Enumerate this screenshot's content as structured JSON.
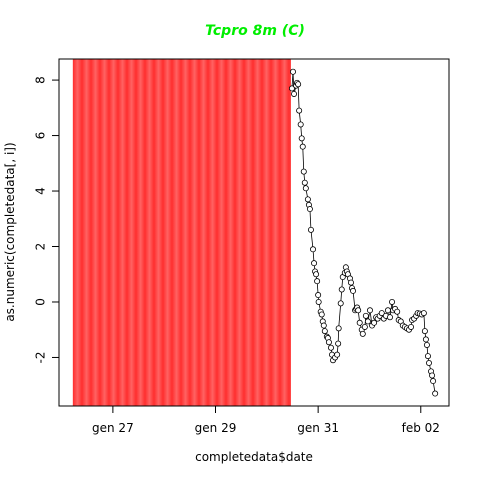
{
  "chart_data": {
    "type": "line",
    "title": "Tcpro 8m (C)",
    "title_color": "#00ee00",
    "xlabel": "completedata$date",
    "ylabel": "as.numeric(completedata[, i])",
    "xlim": [
      25.95,
      33.55
    ],
    "ylim": [
      -3.75,
      8.76
    ],
    "xticks": [
      {
        "value": 27,
        "label": "gen 27"
      },
      {
        "value": 29,
        "label": "gen 29"
      },
      {
        "value": 31,
        "label": "gen 31"
      },
      {
        "value": 33,
        "label": "feb 02"
      }
    ],
    "yticks": [
      -2,
      0,
      2,
      4,
      6,
      8
    ],
    "shaded_region": {
      "xlim": [
        26.22,
        30.47
      ],
      "color": "#ff3b3b"
    },
    "series": [
      {
        "color": "#000000",
        "x": [
          30.49,
          30.51,
          30.53,
          30.57,
          30.59,
          30.61,
          30.63,
          30.66,
          30.68,
          30.7,
          30.72,
          30.74,
          30.76,
          30.8,
          30.82,
          30.84,
          30.86,
          30.9,
          30.92,
          30.94,
          30.96,
          30.98,
          31.0,
          31.01,
          31.05,
          31.07,
          31.09,
          31.11,
          31.13,
          31.17,
          31.19,
          31.21,
          31.25,
          31.27,
          31.29,
          31.33,
          31.37,
          31.39,
          31.4,
          31.44,
          31.46,
          31.48,
          31.52,
          31.54,
          31.56,
          31.58,
          31.62,
          31.64,
          31.66,
          31.68,
          31.72,
          31.74,
          31.76,
          31.78,
          31.81,
          31.85,
          31.87,
          31.91,
          31.93,
          31.97,
          32.01,
          32.05,
          32.09,
          32.13,
          32.16,
          32.2,
          32.24,
          32.28,
          32.32,
          32.36,
          32.4,
          32.44,
          32.46,
          32.5,
          32.54,
          32.57,
          32.61,
          32.65,
          32.69,
          32.73,
          32.77,
          32.81,
          32.83,
          32.87,
          32.91,
          32.94,
          32.98,
          33.02,
          33.06,
          33.08,
          33.1,
          33.12,
          33.14,
          33.16,
          33.2,
          33.22,
          33.24,
          33.28
        ],
        "values": [
          7.7,
          8.3,
          7.5,
          7.8,
          7.9,
          7.85,
          6.9,
          6.4,
          5.9,
          5.6,
          4.7,
          4.3,
          4.1,
          3.7,
          3.5,
          3.35,
          2.6,
          1.9,
          1.4,
          1.1,
          1.0,
          0.75,
          0.25,
          0.0,
          -0.35,
          -0.45,
          -0.7,
          -0.85,
          -1.05,
          -1.25,
          -1.3,
          -1.45,
          -1.65,
          -1.9,
          -2.1,
          -2.0,
          -1.9,
          -1.5,
          -0.95,
          -0.05,
          0.45,
          0.9,
          1.05,
          1.25,
          1.1,
          1.0,
          0.85,
          0.7,
          0.5,
          0.4,
          -0.3,
          -0.25,
          -0.2,
          -0.3,
          -0.75,
          -1.0,
          -1.15,
          -0.9,
          -0.5,
          -0.7,
          -0.3,
          -0.85,
          -0.75,
          -0.55,
          -0.6,
          -0.5,
          -0.4,
          -0.6,
          -0.5,
          -0.3,
          -0.55,
          0.0,
          -0.3,
          -0.25,
          -0.35,
          -0.65,
          -0.7,
          -0.85,
          -0.9,
          -0.95,
          -1.0,
          -0.9,
          -0.65,
          -0.6,
          -0.5,
          -0.4,
          -0.42,
          -0.45,
          -0.4,
          -1.05,
          -1.35,
          -1.55,
          -1.95,
          -2.2,
          -2.5,
          -2.65,
          -2.85,
          -3.3
        ]
      }
    ]
  }
}
